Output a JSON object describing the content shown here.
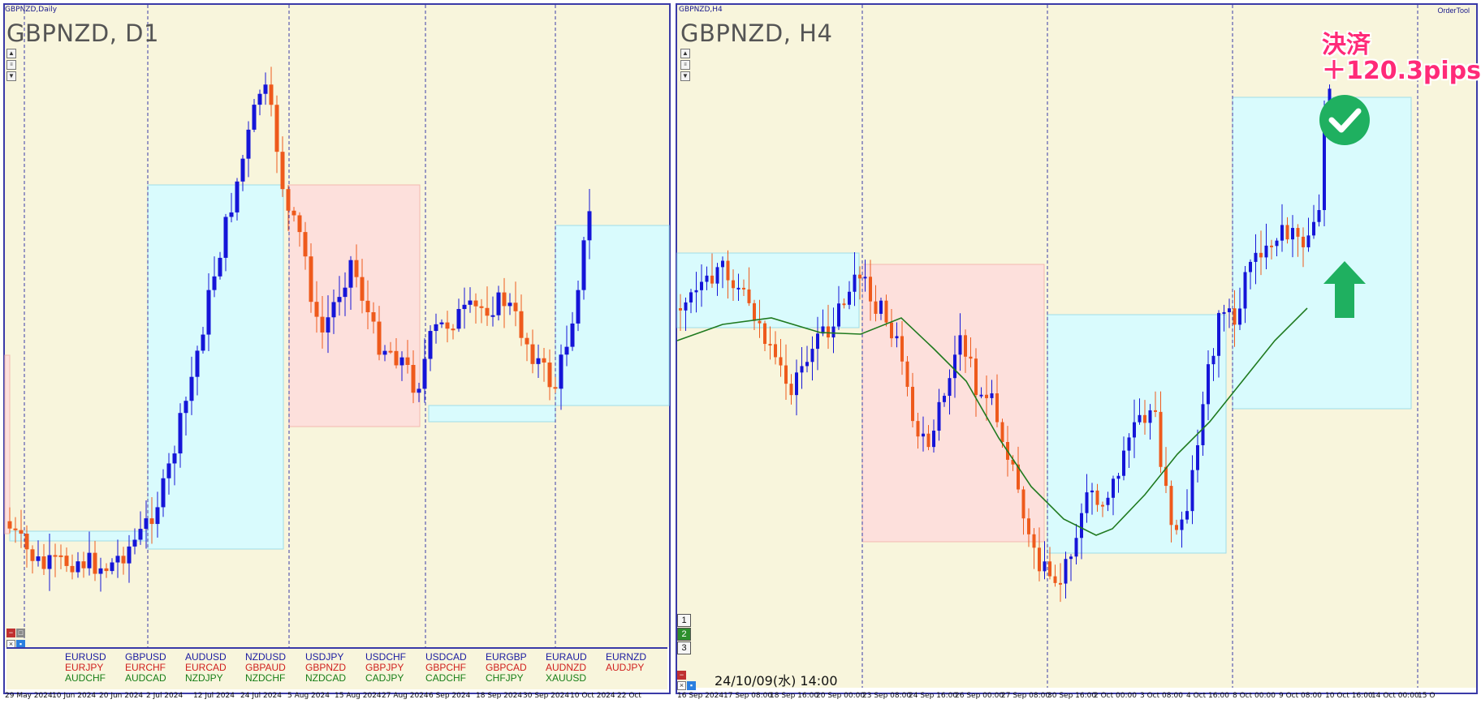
{
  "left_chart": {
    "window_title": "GBPNZD,Daily",
    "symbol_title": "GBPNZD, D1",
    "x_labels": [
      "29 May 2024",
      "10 Jun 2024",
      "20 Jun 2024",
      "2 Jul 2024",
      "12 Jul 2024",
      "24 Jul 2024",
      "5 Aug 2024",
      "15 Aug 2024",
      "27 Aug 2024",
      "6 Sep 2024",
      "18 Sep 2024",
      "30 Sep 2024",
      "10 Oct 2024",
      "22 Oct"
    ],
    "symbol_columns": [
      [
        "EURUSD",
        "EURJPY",
        "AUDCHF"
      ],
      [
        "GBPUSD",
        "EURCHF",
        "AUDCAD"
      ],
      [
        "AUDUSD",
        "EURCAD",
        "NZDJPY"
      ],
      [
        "NZDUSD",
        "GBPAUD",
        "NZDCHF"
      ],
      [
        "USDJPY",
        "GBPNZD",
        "NZDCAD"
      ],
      [
        "USDCHF",
        "GBPJPY",
        "CADJPY"
      ],
      [
        "USDCAD",
        "GBPCHF",
        "CADCHF"
      ],
      [
        "EURGBP",
        "GBPCAD",
        "CHFJPY"
      ],
      [
        "EURAUD",
        "AUDNZD",
        "XAUUSD"
      ],
      [
        "EURNZD",
        "AUDJPY",
        ""
      ]
    ],
    "symbol_colors": [
      "blue",
      "red",
      "green"
    ]
  },
  "right_chart": {
    "window_title": "GBPNZD,H4",
    "symbol_title": "GBPNZD, H4",
    "order_tool": "OrderTool",
    "x_labels": [
      "16 Sep 2024",
      "17 Sep 08:00",
      "18 Sep 16:00",
      "20 Sep 00:00",
      "23 Sep 08:00",
      "24 Sep 16:00",
      "26 Sep 00:00",
      "27 Sep 08:00",
      "30 Sep 16:00",
      "2 Oct 00:00",
      "3 Oct 08:00",
      "4 Oct 16:00",
      "8 Oct 00:00",
      "9 Oct 08:00",
      "10 Oct 16:00",
      "14 Oct 00:00",
      "15 O"
    ],
    "cursor_datetime": "24/10/09(水) 14:00",
    "number_buttons": [
      "1",
      "2",
      "3"
    ],
    "settlement_label_line1": "決済",
    "settlement_label_line2": "＋120.3pips"
  },
  "colors": {
    "background": "#f8f5dc",
    "bull": "#1515d8",
    "bear": "#ee5a1c",
    "zone_blue": "#d9fbfd",
    "zone_red": "#fde0dc",
    "ma_line": "#1f7a1f",
    "frame": "#3a3aa8",
    "check_green": "#1fb060",
    "settle_pink": "#ff2a78"
  },
  "icons": {
    "check": "check-circle-icon",
    "arrow": "arrow-up-icon"
  }
}
